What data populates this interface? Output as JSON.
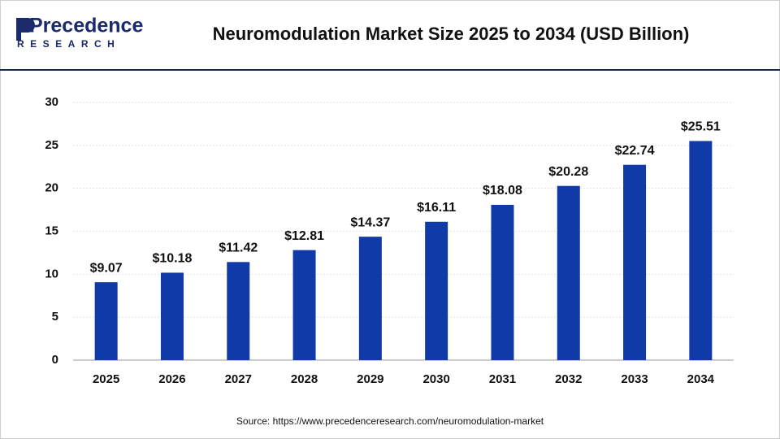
{
  "logo": {
    "name": "Precedence",
    "tagline": "RESEARCH"
  },
  "chart_data": {
    "type": "bar",
    "title": "Neuromodulation Market Size 2025 to 2034 (USD Billion)",
    "categories": [
      "2025",
      "2026",
      "2027",
      "2028",
      "2029",
      "2030",
      "2031",
      "2032",
      "2033",
      "2034"
    ],
    "values": [
      9.07,
      10.18,
      11.42,
      12.81,
      14.37,
      16.11,
      18.08,
      20.28,
      22.74,
      25.51
    ],
    "value_labels": [
      "$9.07",
      "$10.18",
      "$11.42",
      "$12.81",
      "$14.37",
      "$16.11",
      "$18.08",
      "$20.28",
      "$22.74",
      "$25.51"
    ],
    "color": "#0f3aa8",
    "ylim": [
      0,
      30
    ],
    "yticks": [
      0,
      5,
      10,
      15,
      20,
      25,
      30
    ],
    "grid": true
  },
  "source": "Source: https://www.precedenceresearch.com/neuromodulation-market"
}
